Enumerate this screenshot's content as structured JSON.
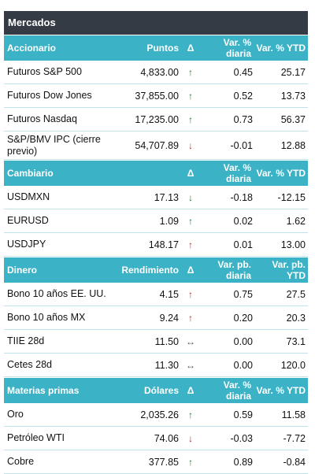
{
  "title": "Mercados",
  "sections": [
    {
      "name": "Accionario",
      "col2": "Puntos",
      "col3": "Δ",
      "col4": "Var. % diaria",
      "col5": "Var. % YTD",
      "rows": [
        {
          "name": "Futuros S&P 500",
          "value": "4,833.00",
          "dir": "up",
          "daily": "0.45",
          "ytd": "25.17"
        },
        {
          "name": "Futuros Dow Jones",
          "value": "37,855.00",
          "dir": "up",
          "daily": "0.52",
          "ytd": "13.73"
        },
        {
          "name": "Futuros Nasdaq",
          "value": "17,235.00",
          "dir": "up",
          "daily": "0.73",
          "ytd": "56.37"
        },
        {
          "name": "S&P/BMV IPC (cierre previo)",
          "value": "54,707.89",
          "dir": "down",
          "daily": "-0.01",
          "ytd": "12.88"
        }
      ]
    },
    {
      "name": "Cambiario",
      "col2": "",
      "col3": "Δ",
      "col4": "Var. % diaria",
      "col5": "Var. % YTD",
      "rows": [
        {
          "name": "USDMXN",
          "value": "17.13",
          "dir": "down-green",
          "daily": "-0.18",
          "ytd": "-12.15"
        },
        {
          "name": "EURUSD",
          "value": "1.09",
          "dir": "up",
          "daily": "0.02",
          "ytd": "1.62"
        },
        {
          "name": "USDJPY",
          "value": "148.17",
          "dir": "up-red",
          "daily": "0.01",
          "ytd": "13.00"
        }
      ]
    },
    {
      "name": "Dinero",
      "col2": "Rendimiento",
      "col3": "Δ",
      "col4": "Var. pb. diaria",
      "col5": "Var. pb. YTD",
      "rows": [
        {
          "name": "Bono 10 años EE. UU.",
          "value": "4.15",
          "dir": "up-red",
          "daily": "0.75",
          "ytd": "27.5"
        },
        {
          "name": "Bono 10 años MX",
          "value": "9.24",
          "dir": "up-red",
          "daily": "0.20",
          "ytd": "20.3"
        },
        {
          "name": "TIIE 28d",
          "value": "11.50",
          "dir": "flat",
          "daily": "0.00",
          "ytd": "73.1"
        },
        {
          "name": "Cetes 28d",
          "value": "11.30",
          "dir": "flat",
          "daily": "0.00",
          "ytd": "120.0"
        }
      ]
    },
    {
      "name": "Materias primas",
      "col2": "Dólares",
      "col3": "Δ",
      "col4": "Var. % diaria",
      "col5": "Var. % YTD",
      "rows": [
        {
          "name": "Oro",
          "value": "2,035.26",
          "dir": "up",
          "daily": "0.59",
          "ytd": "11.58"
        },
        {
          "name": "Petróleo WTI",
          "value": "74.06",
          "dir": "down",
          "daily": "-0.03",
          "ytd": "-7.72"
        },
        {
          "name": "Cobre",
          "value": "377.85",
          "dir": "up",
          "daily": "0.89",
          "ytd": "-0.84"
        }
      ]
    }
  ],
  "colors": {
    "title_bg": "#343b44",
    "header_bg": "#3bb2c6",
    "up": "#1a7f2e",
    "down": "#c62828",
    "flat": "#555555"
  },
  "icons": {
    "up": "arrow-up-icon",
    "down": "arrow-down-icon",
    "flat": "arrow-left-right-icon"
  }
}
